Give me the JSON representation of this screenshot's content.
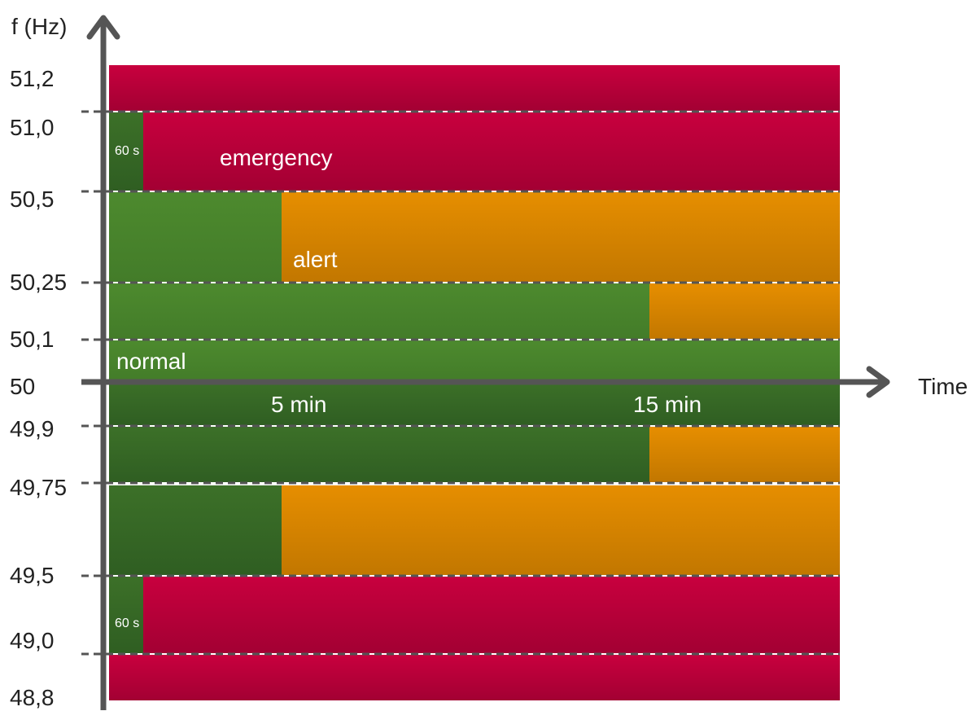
{
  "y_axis": {
    "title": "f (Hz)",
    "ticks": [
      "51,2",
      "51,0",
      "50,5",
      "50,25",
      "50,1",
      "50",
      "49,9",
      "49,75",
      "49,5",
      "49,0",
      "48,8"
    ]
  },
  "x_axis": {
    "title": "Time",
    "ticks": [
      "5 min",
      "15 min"
    ]
  },
  "zones": {
    "emergency": "emergency",
    "alert": "alert",
    "normal": "normal"
  },
  "durations": {
    "upper_60s": "60 s",
    "lower_60s": "60 s"
  },
  "colors": {
    "emergency": "#c0003c",
    "alert": "#e08a00",
    "normal_light": "#4a852e",
    "normal_dark": "#356826",
    "axis": "#555555"
  }
}
